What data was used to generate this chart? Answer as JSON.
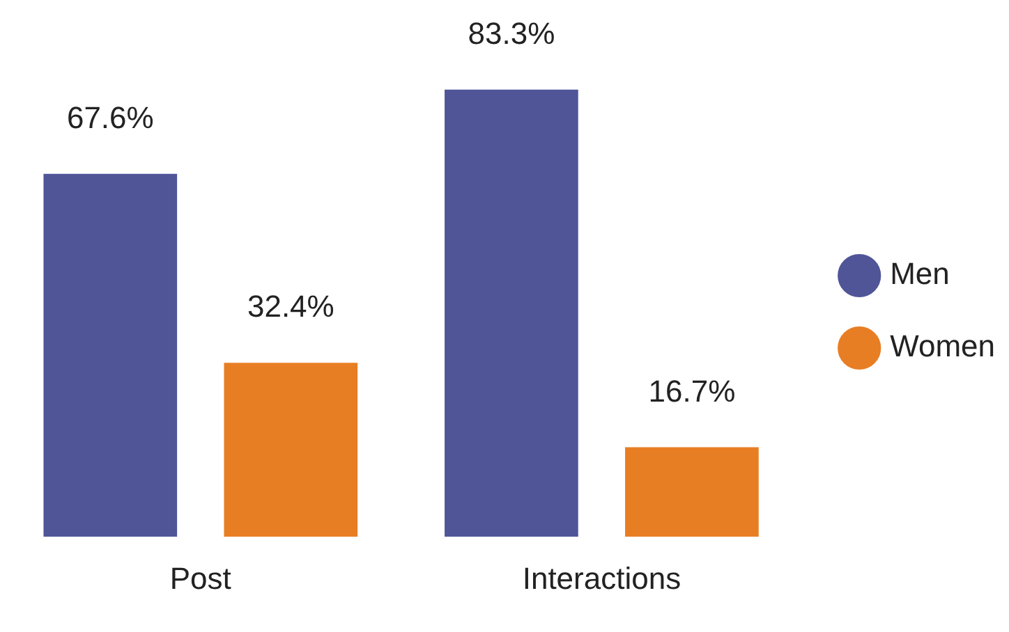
{
  "chart_data": {
    "type": "bar",
    "categories": [
      "Post",
      "Interactions"
    ],
    "series": [
      {
        "name": "Men",
        "color": "#4f5597",
        "values": [
          67.6,
          83.3
        ],
        "value_labels": [
          "67.6%",
          "83.3%"
        ]
      },
      {
        "name": "Women",
        "color": "#e87e24",
        "values": [
          32.4,
          16.7
        ],
        "value_labels": [
          "32.4%",
          "16.7%"
        ]
      }
    ],
    "legend": "right",
    "grid": false
  }
}
